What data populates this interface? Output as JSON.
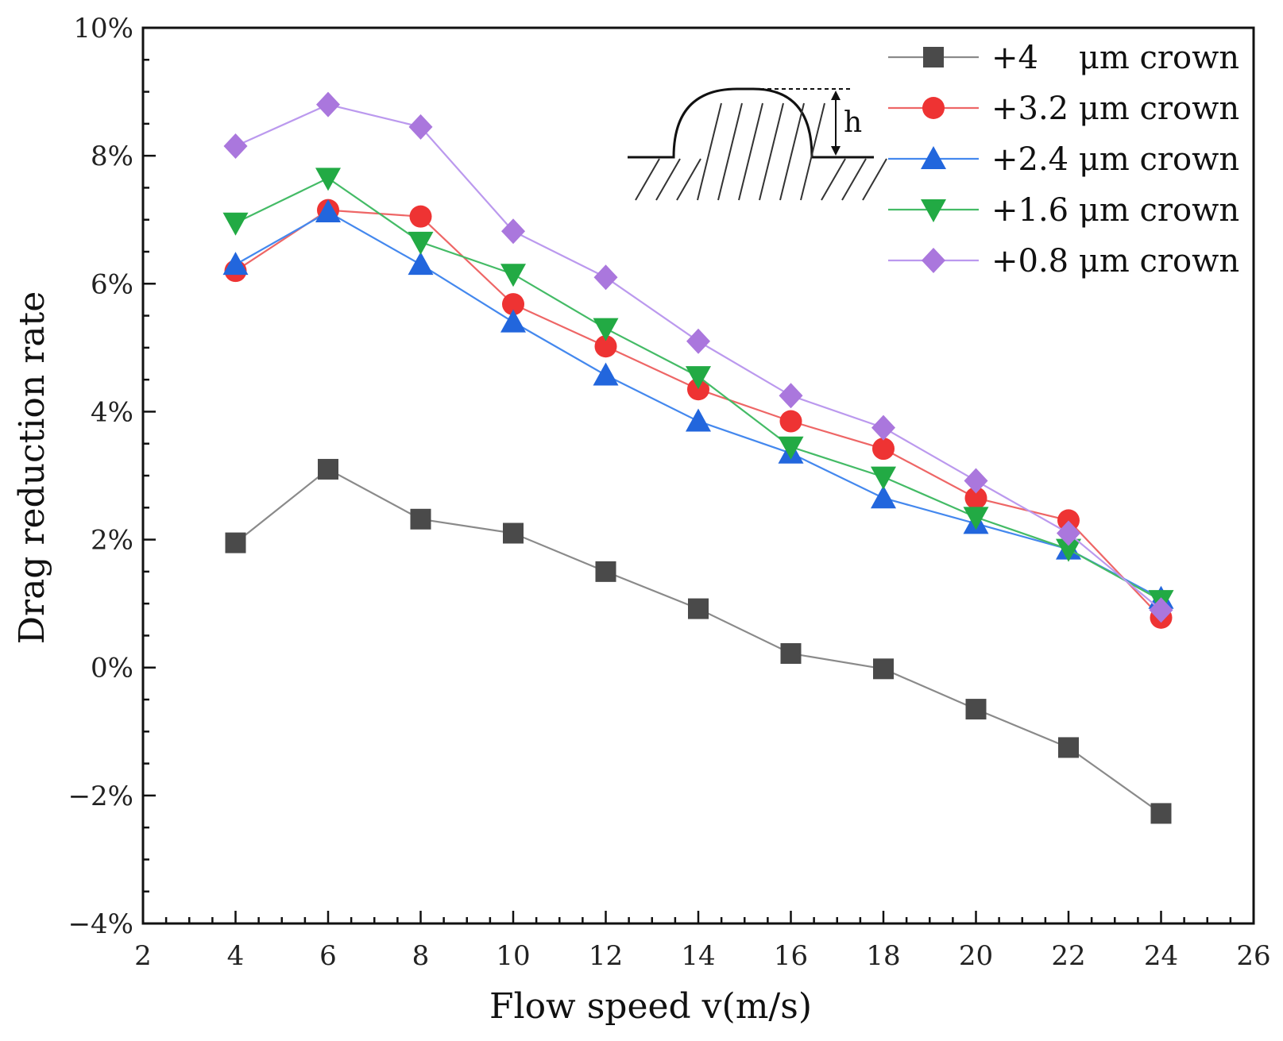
{
  "chart_data": {
    "type": "line",
    "title": "",
    "xlabel": "Flow speed v(m/s)",
    "ylabel": "Drag reduction rate",
    "xlim": [
      2,
      26
    ],
    "ylim": [
      -4,
      10
    ],
    "xticks": [
      2,
      4,
      6,
      8,
      10,
      12,
      14,
      16,
      18,
      20,
      22,
      24,
      26
    ],
    "yticks": [
      -4,
      -2,
      0,
      2,
      4,
      6,
      8,
      10
    ],
    "ytick_labels": [
      "−4%",
      "−2%",
      "0%",
      "2%",
      "4%",
      "6%",
      "8%",
      "10%"
    ],
    "grid": false,
    "legend_position": "top-right",
    "x": [
      4,
      6,
      8,
      10,
      12,
      14,
      16,
      18,
      20,
      22,
      24
    ],
    "series": [
      {
        "name": "+4    μm crown",
        "marker": "square",
        "color": "#4a4a4a",
        "line_color": "#8a8a8a",
        "values": [
          1.95,
          3.1,
          2.32,
          2.1,
          1.5,
          0.92,
          0.22,
          -0.02,
          -0.65,
          -1.25,
          -2.28
        ]
      },
      {
        "name": "+3.2 μm crown",
        "marker": "circle",
        "color": "#ee3333",
        "line_color": "#ee6666",
        "values": [
          6.2,
          7.15,
          7.05,
          5.68,
          5.02,
          4.35,
          3.85,
          3.42,
          2.65,
          2.3,
          0.78
        ]
      },
      {
        "name": "+2.4 μm crown",
        "marker": "triangle-up",
        "color": "#2266dd",
        "line_color": "#4488ee",
        "values": [
          6.3,
          7.12,
          6.3,
          5.4,
          4.57,
          3.85,
          3.35,
          2.65,
          2.25,
          1.85,
          1.08
        ]
      },
      {
        "name": "+1.6 μm crown",
        "marker": "triangle-down",
        "color": "#22aa44",
        "line_color": "#44bb66",
        "values": [
          6.95,
          7.65,
          6.65,
          6.15,
          5.3,
          4.55,
          3.45,
          2.98,
          2.35,
          1.85,
          1.05
        ]
      },
      {
        "name": "+0.8 μm crown",
        "marker": "diamond",
        "color": "#aa77dd",
        "line_color": "#bb99ee",
        "values": [
          8.15,
          8.8,
          8.45,
          6.82,
          6.1,
          5.1,
          4.25,
          3.75,
          2.92,
          2.1,
          0.9
        ]
      }
    ],
    "inset_label": "h"
  }
}
